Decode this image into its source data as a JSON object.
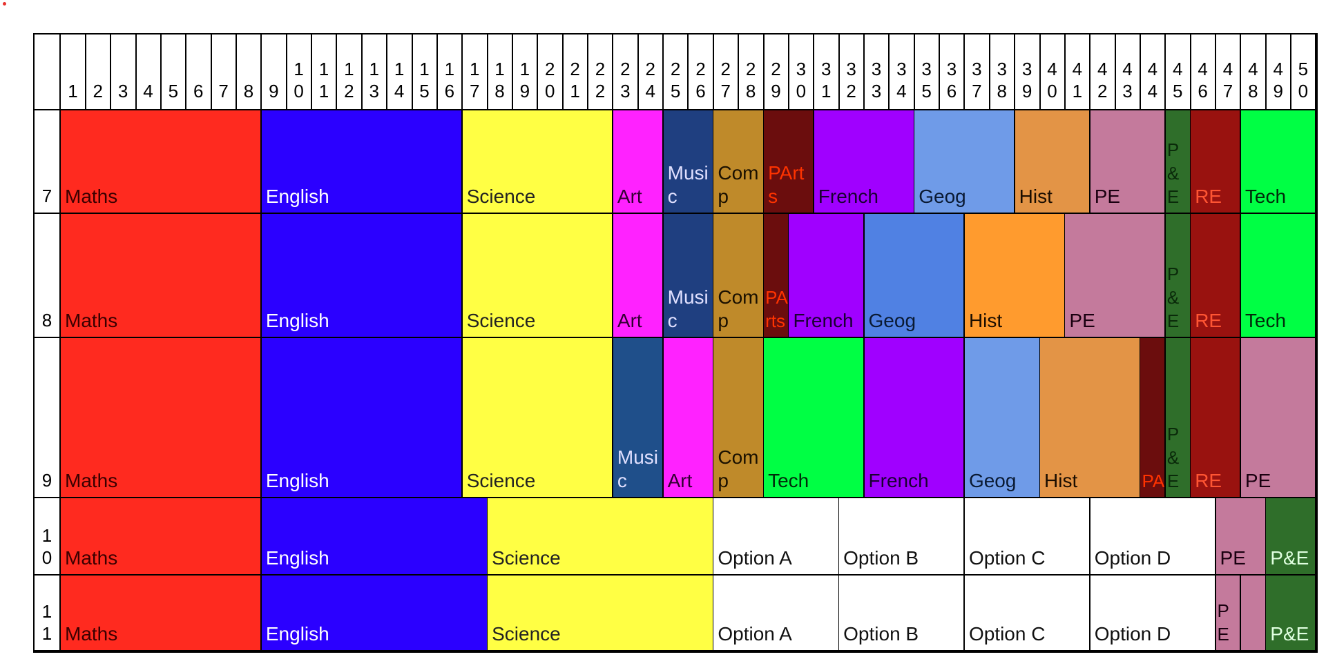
{
  "periods": [
    "1",
    "2",
    "3",
    "4",
    "5",
    "6",
    "7",
    "8",
    "9",
    "1 0",
    "1 1",
    "1 2",
    "1 3",
    "1 4",
    "1 5",
    "1 6",
    "1 7",
    "1 8",
    "1 9",
    "2 0",
    "2 1",
    "2 2",
    "2 3",
    "2 4",
    "2 5",
    "2 6",
    "2 7",
    "2 8",
    "2 9",
    "3 0",
    "3 1",
    "3 2",
    "3 3",
    "3 4",
    "3 5",
    "3 6",
    "3 7",
    "3 8",
    "3 9",
    "4 0",
    "4 1",
    "4 2",
    "4 3",
    "4 4",
    "4 5",
    "4 6",
    "4 7",
    "4 8",
    "4 9",
    "5 0"
  ],
  "rows": [
    {
      "year": "7",
      "blocks": [
        {
          "label": "Maths",
          "start": 1,
          "span": 8,
          "bg": "#ff2a1f",
          "fg": "#3a0000"
        },
        {
          "label": "English",
          "start": 9,
          "span": 8,
          "bg": "#2b00ff",
          "fg": "#ffffff"
        },
        {
          "label": "Science",
          "start": 17,
          "span": 6,
          "bg": "#ffff44",
          "fg": "#222222"
        },
        {
          "label": "Art",
          "start": 23,
          "span": 2,
          "bg": "#ff22ff",
          "fg": "#330033"
        },
        {
          "label": "Music",
          "start": 25,
          "span": 2,
          "bg": "#1f3f80",
          "fg": "#e0e0ff"
        },
        {
          "label": "Comp",
          "start": 27,
          "span": 2,
          "bg": "#bf8a2a",
          "fg": "#1a1000"
        },
        {
          "label": "PArts",
          "start": 29,
          "span": 2,
          "bg": "#6b0d0d",
          "fg": "#ff3300"
        },
        {
          "label": "French",
          "start": 31,
          "span": 4,
          "bg": "#a000ff",
          "fg": "#1a0033"
        },
        {
          "label": "Geog",
          "start": 35,
          "span": 4,
          "bg": "#6f9be8",
          "fg": "#0a1a33"
        },
        {
          "label": "Hist",
          "start": 39,
          "span": 3,
          "bg": "#e39446",
          "fg": "#1a0d00"
        },
        {
          "label": "PE",
          "start": 42,
          "span": 3,
          "bg": "#c47a9c",
          "fg": "#1a0010"
        },
        {
          "label": "P&E",
          "start": 45,
          "span": 1,
          "bg": "#2f6e2a",
          "fg": "#0a2a0a"
        },
        {
          "label": "RE",
          "start": 46,
          "span": 2,
          "bg": "#99120f",
          "fg": "#ff5533"
        },
        {
          "label": "Tech",
          "start": 48,
          "span": 3,
          "bg": "#00ff44",
          "fg": "#002a0a"
        }
      ]
    },
    {
      "year": "8",
      "blocks": [
        {
          "label": "Maths",
          "start": 1,
          "span": 8,
          "bg": "#ff2a1f",
          "fg": "#3a0000"
        },
        {
          "label": "English",
          "start": 9,
          "span": 8,
          "bg": "#2b00ff",
          "fg": "#ffffff"
        },
        {
          "label": "Science",
          "start": 17,
          "span": 6,
          "bg": "#ffff44",
          "fg": "#222222"
        },
        {
          "label": "Art",
          "start": 23,
          "span": 2,
          "bg": "#ff22ff",
          "fg": "#330033"
        },
        {
          "label": "Music",
          "start": 25,
          "span": 2,
          "bg": "#1f3f80",
          "fg": "#e0e0ff"
        },
        {
          "label": "Comp",
          "start": 27,
          "span": 2,
          "bg": "#bf8a2a",
          "fg": "#1a1000"
        },
        {
          "label": "PArts",
          "start": 29,
          "span": 1,
          "bg": "#6b0d0d",
          "fg": "#ff3300"
        },
        {
          "label": "French",
          "start": 30,
          "span": 3,
          "bg": "#a000ff",
          "fg": "#1a0033"
        },
        {
          "label": "Geog",
          "start": 33,
          "span": 4,
          "bg": "#5081e3",
          "fg": "#0a1a33"
        },
        {
          "label": "Hist",
          "start": 37,
          "span": 4,
          "bg": "#ff9b2e",
          "fg": "#1a0d00"
        },
        {
          "label": "PE",
          "start": 41,
          "span": 4,
          "bg": "#c47a9c",
          "fg": "#1a0010"
        },
        {
          "label": "P&E",
          "start": 45,
          "span": 1,
          "bg": "#2f6e2a",
          "fg": "#0a2a0a"
        },
        {
          "label": "RE",
          "start": 46,
          "span": 2,
          "bg": "#99120f",
          "fg": "#ff5533"
        },
        {
          "label": "Tech",
          "start": 48,
          "span": 3,
          "bg": "#00ff44",
          "fg": "#002a0a"
        }
      ]
    },
    {
      "year": "9",
      "blocks": [
        {
          "label": "Maths",
          "start": 1,
          "span": 8,
          "bg": "#ff2a1f",
          "fg": "#3a0000"
        },
        {
          "label": "English",
          "start": 9,
          "span": 8,
          "bg": "#2b00ff",
          "fg": "#ffffff"
        },
        {
          "label": "Science",
          "start": 17,
          "span": 6,
          "bg": "#ffff44",
          "fg": "#222222"
        },
        {
          "label": "Music",
          "start": 23,
          "span": 2,
          "bg": "#1f4f8a",
          "fg": "#e0e0ff"
        },
        {
          "label": "Art",
          "start": 25,
          "span": 2,
          "bg": "#ff22ff",
          "fg": "#330033"
        },
        {
          "label": "Comp",
          "start": 27,
          "span": 2,
          "bg": "#bf8a2a",
          "fg": "#1a1000"
        },
        {
          "label": "Tech",
          "start": 29,
          "span": 4,
          "bg": "#00ff44",
          "fg": "#002a0a"
        },
        {
          "label": "French",
          "start": 33,
          "span": 4,
          "bg": "#a000ff",
          "fg": "#1a0033"
        },
        {
          "label": "Geog",
          "start": 37,
          "span": 3,
          "bg": "#6f9be8",
          "fg": "#0a1a33"
        },
        {
          "label": "Hist",
          "start": 40,
          "span": 4,
          "bg": "#e39446",
          "fg": "#1a0d00"
        },
        {
          "label": "PA",
          "start": 44,
          "span": 1,
          "bg": "#6b0d0d",
          "fg": "#ff3300"
        },
        {
          "label": "P&E",
          "start": 45,
          "span": 1,
          "bg": "#2f6e2a",
          "fg": "#0a2a0a"
        },
        {
          "label": "RE",
          "start": 46,
          "span": 2,
          "bg": "#99120f",
          "fg": "#ff5533"
        },
        {
          "label": "PE",
          "start": 48,
          "span": 3,
          "bg": "#c47a9c",
          "fg": "#1a0010"
        }
      ]
    },
    {
      "year": "1 0",
      "blocks": [
        {
          "label": "Maths",
          "start": 1,
          "span": 8,
          "bg": "#ff2a1f",
          "fg": "#3a0000"
        },
        {
          "label": "English",
          "start": 9,
          "span": 9,
          "bg": "#2b00ff",
          "fg": "#ffffff"
        },
        {
          "label": "Science",
          "start": 18,
          "span": 9,
          "bg": "#ffff44",
          "fg": "#222222"
        },
        {
          "label": "Option A",
          "start": 27,
          "span": 5,
          "bg": "#ffffff",
          "fg": "#111111"
        },
        {
          "label": "Option B",
          "start": 32,
          "span": 5,
          "bg": "#ffffff",
          "fg": "#111111"
        },
        {
          "label": "Option C",
          "start": 37,
          "span": 5,
          "bg": "#ffffff",
          "fg": "#111111"
        },
        {
          "label": "Option D",
          "start": 42,
          "span": 5,
          "bg": "#ffffff",
          "fg": "#111111"
        },
        {
          "label": "PE",
          "start": 47,
          "span": 2,
          "bg": "#c47a9c",
          "fg": "#1a0010"
        },
        {
          "label": "P&E",
          "start": 49,
          "span": 2,
          "bg": "#2f6e2a",
          "fg": "#e0ffe0"
        }
      ]
    },
    {
      "year": "1 1",
      "blocks": [
        {
          "label": "Maths",
          "start": 1,
          "span": 8,
          "bg": "#ff2a1f",
          "fg": "#3a0000"
        },
        {
          "label": "English",
          "start": 9,
          "span": 9,
          "bg": "#2b00ff",
          "fg": "#ffffff"
        },
        {
          "label": "Science",
          "start": 18,
          "span": 9,
          "bg": "#ffff44",
          "fg": "#222222"
        },
        {
          "label": "Option A",
          "start": 27,
          "span": 5,
          "bg": "#ffffff",
          "fg": "#111111"
        },
        {
          "label": "Option B",
          "start": 32,
          "span": 5,
          "bg": "#ffffff",
          "fg": "#111111"
        },
        {
          "label": "Option C",
          "start": 37,
          "span": 5,
          "bg": "#ffffff",
          "fg": "#111111"
        },
        {
          "label": "Option D",
          "start": 42,
          "span": 5,
          "bg": "#ffffff",
          "fg": "#111111"
        },
        {
          "label": "PE",
          "start": 47,
          "span": 1,
          "bg": "#c47a9c",
          "fg": "#1a0010"
        },
        {
          "label": "",
          "start": 48,
          "span": 1,
          "bg": "#c47a9c",
          "fg": "#1a0010"
        },
        {
          "label": "P&E",
          "start": 49,
          "span": 2,
          "bg": "#2f6e2a",
          "fg": "#e0ffe0"
        }
      ]
    }
  ]
}
